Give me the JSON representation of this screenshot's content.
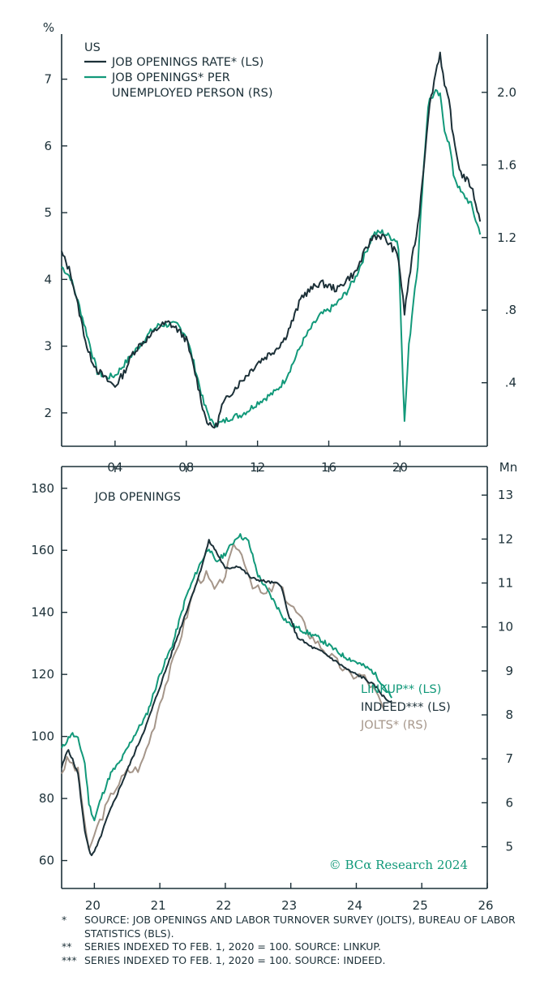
{
  "colors": {
    "axis": "#1c3038",
    "navy": "#1c3038",
    "green": "#12997a",
    "tan": "#a5968a"
  },
  "chart_data": [
    {
      "type": "line",
      "title": "US",
      "left_axis_label": "%",
      "left_ticks": [
        "2",
        "3",
        "4",
        "5",
        "6",
        "7"
      ],
      "ylim_left": [
        1.5,
        7.7
      ],
      "right_ticks": [
        ".4",
        ".8",
        "1.2",
        "1.6",
        "2.0"
      ],
      "ylim_right": [
        0.05,
        2.33
      ],
      "x_ticks": [
        "04",
        "08",
        "12",
        "16",
        "20"
      ],
      "xlim": [
        2001.0,
        2024.9
      ],
      "x_tick_years": [
        2004,
        2008,
        2012,
        2016,
        2020
      ],
      "series": [
        {
          "name": "JOB OPENINGS RATE* (LS)",
          "axis": "left",
          "color": "#1c3038",
          "points": [
            [
              2001.0,
              4.4
            ],
            [
              2001.5,
              4.1
            ],
            [
              2002.0,
              3.5
            ],
            [
              2002.5,
              2.9
            ],
            [
              2003.0,
              2.65
            ],
            [
              2003.5,
              2.5
            ],
            [
              2004.0,
              2.4
            ],
            [
              2004.5,
              2.6
            ],
            [
              2005.0,
              2.9
            ],
            [
              2005.5,
              3.05
            ],
            [
              2006.0,
              3.15
            ],
            [
              2006.5,
              3.3
            ],
            [
              2007.0,
              3.35
            ],
            [
              2007.5,
              3.25
            ],
            [
              2008.0,
              3.1
            ],
            [
              2008.5,
              2.6
            ],
            [
              2009.0,
              2.0
            ],
            [
              2009.3,
              1.8
            ],
            [
              2009.7,
              1.8
            ],
            [
              2010.0,
              2.1
            ],
            [
              2010.5,
              2.3
            ],
            [
              2011.0,
              2.45
            ],
            [
              2011.5,
              2.6
            ],
            [
              2012.0,
              2.75
            ],
            [
              2012.5,
              2.85
            ],
            [
              2013.0,
              2.95
            ],
            [
              2013.5,
              3.1
            ],
            [
              2014.0,
              3.4
            ],
            [
              2014.5,
              3.75
            ],
            [
              2015.0,
              3.85
            ],
            [
              2015.5,
              3.95
            ],
            [
              2016.0,
              3.9
            ],
            [
              2016.5,
              3.85
            ],
            [
              2017.0,
              4.0
            ],
            [
              2017.5,
              4.1
            ],
            [
              2018.0,
              4.4
            ],
            [
              2018.5,
              4.65
            ],
            [
              2019.0,
              4.65
            ],
            [
              2019.5,
              4.5
            ],
            [
              2019.9,
              4.35
            ],
            [
              2020.25,
              3.5
            ],
            [
              2020.5,
              4.0
            ],
            [
              2020.8,
              4.5
            ],
            [
              2021.0,
              4.8
            ],
            [
              2021.3,
              5.6
            ],
            [
              2021.6,
              6.5
            ],
            [
              2022.0,
              7.1
            ],
            [
              2022.25,
              7.4
            ],
            [
              2022.5,
              6.9
            ],
            [
              2022.8,
              6.6
            ],
            [
              2023.0,
              6.1
            ],
            [
              2023.4,
              5.6
            ],
            [
              2023.7,
              5.5
            ],
            [
              2024.0,
              5.4
            ],
            [
              2024.3,
              5.1
            ],
            [
              2024.5,
              4.85
            ]
          ]
        },
        {
          "name": "JOB OPENINGS* PER UNEMPLOYED PERSON (RS)",
          "axis": "right",
          "color": "#12997a",
          "points": [
            [
              2001.0,
              1.04
            ],
            [
              2001.5,
              0.98
            ],
            [
              2002.0,
              0.82
            ],
            [
              2002.5,
              0.64
            ],
            [
              2003.0,
              0.46
            ],
            [
              2003.5,
              0.43
            ],
            [
              2004.0,
              0.44
            ],
            [
              2004.5,
              0.5
            ],
            [
              2005.0,
              0.56
            ],
            [
              2005.5,
              0.62
            ],
            [
              2006.0,
              0.68
            ],
            [
              2006.5,
              0.72
            ],
            [
              2007.0,
              0.72
            ],
            [
              2007.5,
              0.72
            ],
            [
              2008.0,
              0.66
            ],
            [
              2008.5,
              0.48
            ],
            [
              2009.0,
              0.28
            ],
            [
              2009.5,
              0.17
            ],
            [
              2010.0,
              0.18
            ],
            [
              2010.5,
              0.21
            ],
            [
              2011.0,
              0.22
            ],
            [
              2011.5,
              0.25
            ],
            [
              2012.0,
              0.29
            ],
            [
              2012.5,
              0.32
            ],
            [
              2013.0,
              0.35
            ],
            [
              2013.5,
              0.41
            ],
            [
              2014.0,
              0.51
            ],
            [
              2014.5,
              0.62
            ],
            [
              2015.0,
              0.7
            ],
            [
              2015.5,
              0.77
            ],
            [
              2016.0,
              0.8
            ],
            [
              2016.5,
              0.84
            ],
            [
              2017.0,
              0.9
            ],
            [
              2017.5,
              0.98
            ],
            [
              2018.0,
              1.1
            ],
            [
              2018.5,
              1.22
            ],
            [
              2019.0,
              1.23
            ],
            [
              2019.5,
              1.2
            ],
            [
              2019.9,
              1.18
            ],
            [
              2020.25,
              0.18
            ],
            [
              2020.5,
              0.6
            ],
            [
              2020.8,
              0.9
            ],
            [
              2021.0,
              1.05
            ],
            [
              2021.3,
              1.55
            ],
            [
              2021.6,
              1.95
            ],
            [
              2022.0,
              2.0
            ],
            [
              2022.25,
              1.98
            ],
            [
              2022.5,
              1.8
            ],
            [
              2022.8,
              1.7
            ],
            [
              2023.0,
              1.55
            ],
            [
              2023.4,
              1.45
            ],
            [
              2023.7,
              1.42
            ],
            [
              2024.0,
              1.38
            ],
            [
              2024.3,
              1.28
            ],
            [
              2024.5,
              1.23
            ]
          ]
        }
      ]
    },
    {
      "type": "line",
      "title": "JOB OPENINGS",
      "right_axis_label": "Mn",
      "left_ticks": [
        "60",
        "80",
        "100",
        "120",
        "140",
        "160",
        "180"
      ],
      "ylim_left": [
        51,
        187
      ],
      "right_ticks": [
        "5",
        "6",
        "7",
        "8",
        "9",
        "10",
        "11",
        "12",
        "13"
      ],
      "ylim_right": [
        4.05,
        13.65
      ],
      "x_ticks": [
        "20",
        "21",
        "22",
        "23",
        "24",
        "25",
        "26"
      ],
      "xlim": [
        2019.5,
        2026.0
      ],
      "x_tick_years": [
        2020,
        2021,
        2022,
        2023,
        2024,
        2025,
        2026
      ],
      "series": [
        {
          "name": "LINKUP** (LS)",
          "axis": "left",
          "color": "#12997a",
          "points": [
            [
              2019.5,
              96
            ],
            [
              2019.65,
              101
            ],
            [
              2019.75,
              99
            ],
            [
              2019.85,
              92
            ],
            [
              2019.92,
              78
            ],
            [
              2020.0,
              73
            ],
            [
              2020.1,
              80
            ],
            [
              2020.25,
              88
            ],
            [
              2020.4,
              92
            ],
            [
              2020.6,
              100
            ],
            [
              2020.8,
              107
            ],
            [
              2021.0,
              120
            ],
            [
              2021.2,
              130
            ],
            [
              2021.4,
              145
            ],
            [
              2021.6,
              155
            ],
            [
              2021.75,
              161
            ],
            [
              2021.85,
              156
            ],
            [
              2022.0,
              159
            ],
            [
              2022.2,
              165
            ],
            [
              2022.35,
              163
            ],
            [
              2022.5,
              152
            ],
            [
              2022.7,
              145
            ],
            [
              2022.9,
              138
            ],
            [
              2023.0,
              136
            ],
            [
              2023.2,
              134
            ],
            [
              2023.4,
              132
            ],
            [
              2023.6,
              129
            ],
            [
              2023.8,
              126
            ],
            [
              2024.0,
              124
            ],
            [
              2024.25,
              121
            ],
            [
              2024.4,
              117
            ],
            [
              2024.55,
              112
            ]
          ]
        },
        {
          "name": "INDEED*** (LS)",
          "axis": "left",
          "color": "#1c3038",
          "points": [
            [
              2019.5,
              90
            ],
            [
              2019.6,
              96
            ],
            [
              2019.75,
              88
            ],
            [
              2019.85,
              70
            ],
            [
              2019.95,
              61
            ],
            [
              2020.05,
              65
            ],
            [
              2020.2,
              74
            ],
            [
              2020.4,
              84
            ],
            [
              2020.6,
              94
            ],
            [
              2020.8,
              104
            ],
            [
              2021.0,
              116
            ],
            [
              2021.2,
              128
            ],
            [
              2021.4,
              140
            ],
            [
              2021.6,
              152
            ],
            [
              2021.75,
              163
            ],
            [
              2021.85,
              160
            ],
            [
              2022.0,
              154
            ],
            [
              2022.2,
              155
            ],
            [
              2022.4,
              151
            ],
            [
              2022.6,
              150
            ],
            [
              2022.85,
              149
            ],
            [
              2022.95,
              140
            ],
            [
              2023.1,
              132
            ],
            [
              2023.3,
              129
            ],
            [
              2023.5,
              127
            ],
            [
              2023.7,
              124
            ],
            [
              2023.9,
              121
            ],
            [
              2024.1,
              119
            ],
            [
              2024.3,
              116
            ],
            [
              2024.45,
              112
            ],
            [
              2024.55,
              111
            ]
          ]
        },
        {
          "name": "JOLTS* (RS)",
          "axis": "right",
          "color": "#a5968a",
          "points": [
            [
              2019.5,
              6.7
            ],
            [
              2019.6,
              7.0
            ],
            [
              2019.75,
              6.7
            ],
            [
              2019.85,
              5.6
            ],
            [
              2019.92,
              4.8
            ],
            [
              2020.0,
              5.3
            ],
            [
              2020.15,
              5.8
            ],
            [
              2020.3,
              6.3
            ],
            [
              2020.5,
              6.7
            ],
            [
              2020.7,
              6.8
            ],
            [
              2020.9,
              7.7
            ],
            [
              2021.0,
              8.3
            ],
            [
              2021.2,
              9.2
            ],
            [
              2021.4,
              10.2
            ],
            [
              2021.55,
              11.0
            ],
            [
              2021.7,
              11.2
            ],
            [
              2021.85,
              10.8
            ],
            [
              2022.0,
              11.2
            ],
            [
              2022.15,
              11.9
            ],
            [
              2022.3,
              11.5
            ],
            [
              2022.4,
              11.0
            ],
            [
              2022.6,
              10.7
            ],
            [
              2022.8,
              11.0
            ],
            [
              2022.95,
              10.6
            ],
            [
              2023.1,
              10.3
            ],
            [
              2023.3,
              9.8
            ],
            [
              2023.5,
              9.5
            ],
            [
              2023.7,
              9.2
            ],
            [
              2023.9,
              8.9
            ],
            [
              2024.1,
              8.9
            ],
            [
              2024.3,
              8.5
            ],
            [
              2024.42,
              8.1
            ]
          ]
        }
      ]
    }
  ],
  "footnotes": [
    {
      "mark": "*",
      "text": "SOURCE: JOB OPENINGS AND LABOR TURNOVER SURVEY (JOLTS), BUREAU OF LABOR STATISTICS (BLS)."
    },
    {
      "mark": "**",
      "text": "SERIES INDEXED TO FEB. 1, 2020 = 100. SOURCE: LINKUP."
    },
    {
      "mark": "***",
      "text": "SERIES INDEXED TO FEB. 1, 2020 = 100. SOURCE: INDEED."
    }
  ],
  "credit": "© BCα Research 2024"
}
